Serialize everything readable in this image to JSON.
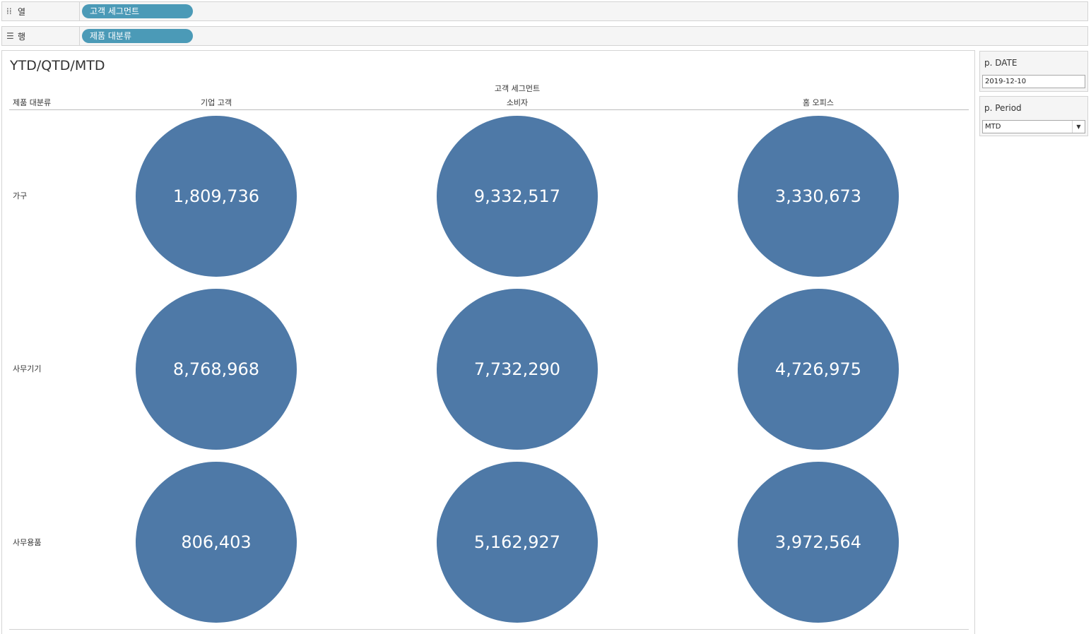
{
  "shelves": {
    "columns": {
      "label": "열",
      "icon": "columns-icon",
      "pill": "고객 세그먼트"
    },
    "rows": {
      "label": "행",
      "icon": "rows-icon",
      "pill": "제품 대분류"
    }
  },
  "viz": {
    "title": "YTD/QTD/MTD",
    "column_group_header": "고객 세그먼트",
    "row_header_title": "제품 대분류",
    "columns": [
      "기업 고객",
      "소비자",
      "홈 오피스"
    ],
    "rows": [
      {
        "label": "가구",
        "values": [
          "1,809,736",
          "9,332,517",
          "3,330,673"
        ]
      },
      {
        "label": "사무기기",
        "values": [
          "8,768,968",
          "7,732,290",
          "4,726,975"
        ]
      },
      {
        "label": "사무용품",
        "values": [
          "806,403",
          "5,162,927",
          "3,972,564"
        ]
      }
    ],
    "mark_color": "#4e79a7"
  },
  "parameters": {
    "date": {
      "title": "p. DATE",
      "value": "2019-12-10"
    },
    "period": {
      "title": "p. Period",
      "value": "MTD",
      "icon": "chevron-down-icon"
    }
  }
}
